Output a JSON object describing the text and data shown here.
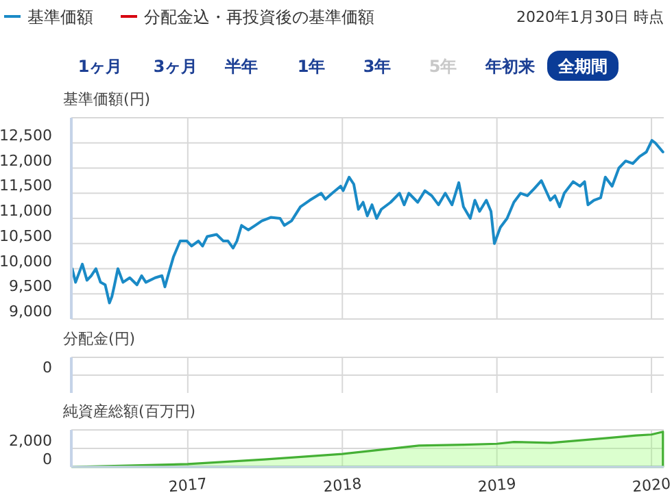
{
  "chart_data": [
    {
      "type": "line",
      "subtitle": "2020年1月30日 時点",
      "ylabel": "基準価額(円)",
      "legend": "top left",
      "grid": true,
      "tick_labels": "y",
      "annotations": [
        "1ヶ月",
        "3ヶ月",
        "半年",
        "1年",
        "3年",
        "5年",
        "年初来",
        "全期間"
      ],
      "xlim": [
        "2016-04-01",
        "2020-01-30"
      ],
      "xticks": [
        "2017",
        "2018",
        "2019",
        "2020"
      ],
      "ylim": [
        9000,
        13000
      ],
      "yticks": [
        {
          "value": 9000,
          "label": "9,000"
        },
        {
          "value": 9500,
          "label": "9,500"
        },
        {
          "value": 10000,
          "label": "10,000"
        },
        {
          "value": 10500,
          "label": "10,500"
        },
        {
          "value": 11000,
          "label": "11,000"
        },
        {
          "value": 11500,
          "label": "11,500"
        },
        {
          "value": 12000,
          "label": "12,000"
        },
        {
          "value": 12500,
          "label": "12,500"
        }
      ],
      "series": [
        {
          "name": "基準価額",
          "color": "#1a8ac6",
          "x": [
            "2016-04-03",
            "2016-04-11",
            "2016-04-27",
            "2016-05-08",
            "2016-05-18",
            "2016-05-29",
            "2016-06-09",
            "2016-06-20",
            "2016-06-30",
            "2016-07-06",
            "2016-07-11",
            "2016-07-20",
            "2016-08-01",
            "2016-08-17",
            "2016-09-03",
            "2016-09-14",
            "2016-09-24",
            "2016-10-16",
            "2016-11-01",
            "2016-11-08",
            "2016-11-17",
            "2016-11-28",
            "2016-12-14",
            "2016-12-30",
            "2017-01-10",
            "2017-01-26",
            "2017-02-05",
            "2017-02-16",
            "2017-03-10",
            "2017-03-26",
            "2017-04-06",
            "2017-04-18",
            "2017-04-27",
            "2017-05-08",
            "2017-05-24",
            "2017-06-09",
            "2017-06-25",
            "2017-07-16",
            "2017-08-07",
            "2017-08-17",
            "2017-09-03",
            "2017-09-24",
            "2017-10-16",
            "2017-11-12",
            "2017-11-22",
            "2017-12-08",
            "2017-12-28",
            "2018-01-03",
            "2018-01-17",
            "2018-01-28",
            "2018-02-08",
            "2018-02-19",
            "2018-03-01",
            "2018-03-12",
            "2018-03-23",
            "2018-04-03",
            "2018-04-25",
            "2018-05-16",
            "2018-05-27",
            "2018-06-07",
            "2018-06-28",
            "2018-07-15",
            "2018-07-31",
            "2018-08-16",
            "2018-09-01",
            "2018-09-17",
            "2018-10-03",
            "2018-10-14",
            "2018-10-30",
            "2018-11-10",
            "2018-11-21",
            "2018-12-07",
            "2018-12-18",
            "2018-12-26",
            "2019-01-09",
            "2019-01-25",
            "2019-02-10",
            "2019-02-26",
            "2019-03-14",
            "2019-03-30",
            "2019-04-16",
            "2019-05-07",
            "2019-05-18",
            "2019-05-29",
            "2019-06-09",
            "2019-06-30",
            "2019-07-16",
            "2019-07-27",
            "2019-08-04",
            "2019-08-18",
            "2019-09-03",
            "2019-09-14",
            "2019-09-30",
            "2019-10-16",
            "2019-11-01",
            "2019-11-18",
            "2019-12-04",
            "2019-12-20",
            "2020-01-02",
            "2020-01-10",
            "2020-01-28"
          ],
          "values": [
            10000,
            9730,
            10090,
            9770,
            9860,
            10000,
            9730,
            9680,
            9320,
            9450,
            9640,
            10000,
            9730,
            9820,
            9680,
            9860,
            9730,
            9820,
            9860,
            9640,
            9910,
            10230,
            10550,
            10550,
            10450,
            10550,
            10450,
            10640,
            10680,
            10550,
            10550,
            10410,
            10550,
            10860,
            10770,
            10860,
            10950,
            11020,
            11000,
            10860,
            10950,
            11230,
            11360,
            11500,
            11380,
            11500,
            11640,
            11550,
            11820,
            11680,
            11180,
            11320,
            11050,
            11270,
            11000,
            11180,
            11320,
            11500,
            11270,
            11500,
            11320,
            11550,
            11450,
            11270,
            11500,
            11270,
            11710,
            11230,
            11000,
            11360,
            11140,
            11360,
            11140,
            10500,
            10820,
            11000,
            11320,
            11500,
            11450,
            11590,
            11750,
            11360,
            11450,
            11230,
            11500,
            11730,
            11640,
            11730,
            11270,
            11360,
            11410,
            11820,
            11640,
            12000,
            12140,
            12090,
            12230,
            12320,
            12550,
            12500,
            12320
          ]
        },
        {
          "name": "分配金込・再投資後の基準価額",
          "color": "#d7000f"
        }
      ]
    },
    {
      "type": "other",
      "ylabel": "分配金(円)",
      "annotations": [
        "0"
      ]
    },
    {
      "type": "area",
      "ylabel": "純資産総額(百万円)",
      "grid": true,
      "xlim": [
        "2016-04-01",
        "2020-01-30"
      ],
      "xticks": [
        "2017",
        "2018",
        "2019",
        "2020"
      ],
      "ylim": [
        0,
        4000
      ],
      "yticks": [
        0,
        {
          "value": 2000,
          "label": "2,000"
        }
      ],
      "series": [
        {
          "color": "#45b035",
          "x": [
            "2016-04-03",
            "2016-10-01",
            "2017-01-01",
            "2017-07-01",
            "2018-01-01",
            "2018-03-01",
            "2018-07-01",
            "2018-10-15",
            "2019-01-01",
            "2019-02-10",
            "2019-05-08",
            "2019-09-14",
            "2019-11-25",
            "2020-01-01",
            "2020-01-28"
          ],
          "values": [
            0,
            200,
            300,
            800,
            1400,
            1700,
            2300,
            2400,
            2500,
            2700,
            2600,
            3100,
            3400,
            3500,
            3800
          ]
        }
      ]
    }
  ]
}
